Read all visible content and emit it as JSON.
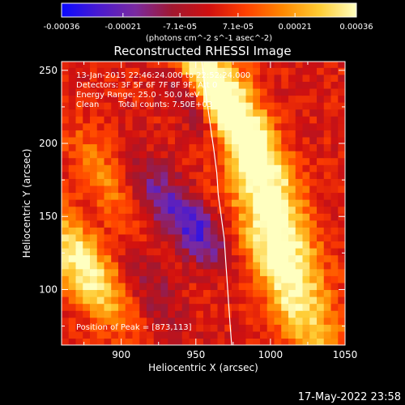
{
  "chart_data": {
    "type": "heatmap",
    "title": "Reconstructed RHESSI Image",
    "xlabel": "Heliocentric X (arcsec)",
    "ylabel": "Heliocentric Y (arcsec)",
    "xlim": [
      860,
      1050
    ],
    "ylim": [
      62,
      256
    ],
    "x_ticks": [
      900,
      950,
      1000,
      1050
    ],
    "y_ticks": [
      100,
      150,
      200,
      250
    ],
    "colorbar": {
      "range": [
        -0.00036,
        0.00036
      ],
      "tick_values": [
        -0.00036,
        -0.00021,
        -7.1e-05,
        7.1e-05,
        0.00021,
        0.00036
      ],
      "tick_labels": [
        "-0.00036",
        "-0.00021",
        "-7.1e-05",
        "7.1e-05",
        "0.00021",
        "0.00036"
      ],
      "units": "(photons cm^-2 s^-1 asec^-2)"
    },
    "colormap": [
      "#0a0aff",
      "#4a1ad0",
      "#7a2aa0",
      "#a01830",
      "#d01010",
      "#ff4000",
      "#ff8800",
      "#ffcc33",
      "#ffffc0"
    ],
    "grid": false,
    "limb_arc": [
      [
        954,
        256
      ],
      [
        956,
        240
      ],
      [
        958,
        225
      ],
      [
        960,
        210
      ],
      [
        962,
        196
      ],
      [
        964,
        180
      ],
      [
        965,
        165
      ],
      [
        967,
        150
      ],
      [
        969,
        135
      ],
      [
        970,
        120
      ],
      [
        971,
        105
      ],
      [
        972,
        90
      ],
      [
        973,
        75
      ],
      [
        974,
        62
      ]
    ],
    "features": [
      {
        "x": 950,
        "y": 245,
        "value": 0.0003,
        "sx": 40,
        "sy": 8,
        "angle": -60
      },
      {
        "x": 985,
        "y": 215,
        "value": 0.00025,
        "sx": 55,
        "sy": 9,
        "angle": -62
      },
      {
        "x": 1000,
        "y": 150,
        "value": 0.00033,
        "sx": 60,
        "sy": 10,
        "angle": -65
      },
      {
        "x": 1005,
        "y": 100,
        "value": 0.00028,
        "sx": 50,
        "sy": 10,
        "angle": -65
      },
      {
        "x": 873,
        "y": 113,
        "value": 0.00036,
        "sx": 30,
        "sy": 12,
        "angle": -58
      },
      {
        "x": 885,
        "y": 175,
        "value": 0.00015,
        "sx": 30,
        "sy": 10,
        "angle": -60
      },
      {
        "x": 925,
        "y": 160,
        "value": -0.0002,
        "sx": 20,
        "sy": 12,
        "angle": -60
      },
      {
        "x": 950,
        "y": 135,
        "value": -0.00025,
        "sx": 16,
        "sy": 10,
        "angle": -60
      },
      {
        "x": 945,
        "y": 225,
        "value": -0.00015,
        "sx": 20,
        "sy": 8,
        "angle": -60
      },
      {
        "x": 920,
        "y": 95,
        "value": -0.00012,
        "sx": 25,
        "sy": 10,
        "angle": -60
      }
    ],
    "annotations": {
      "time": "13-Jan-2015 22:46:24.000 to 22:52:24.000",
      "detectors": "Detectors: 3F 5F 6F 7F 8F 9F, Att 0",
      "energy": "Energy Range: 25.0 - 50.0 keV",
      "clean_label": "Clean",
      "counts": "Total counts: 7.50E+03",
      "peak": "Position of Peak = [873,113]"
    }
  },
  "footer_timestamp": "17-May-2022 23:58"
}
